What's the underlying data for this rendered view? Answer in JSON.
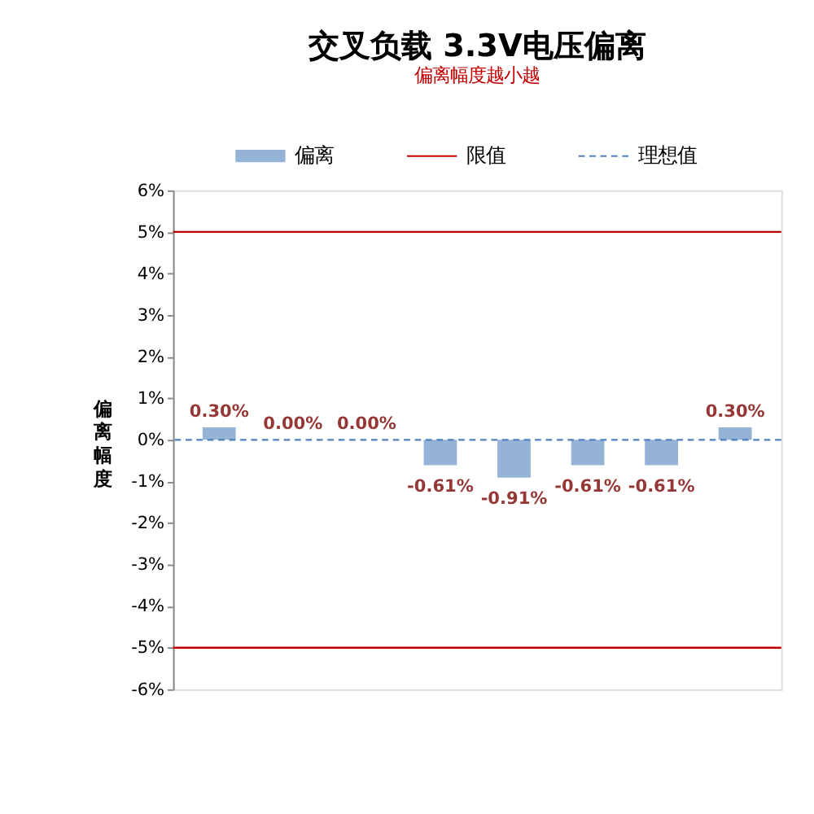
{
  "chart_data": {
    "type": "bar",
    "title": "交叉负载 3.3V电压偏离",
    "subtitle": "偏离幅度越小越",
    "ylabel": "偏离幅度",
    "categories": [
      null,
      null,
      null,
      null,
      null,
      null,
      null,
      null
    ],
    "series": [
      {
        "name": "偏离",
        "color": "#95b3d7",
        "values": [
          0.3,
          0.0,
          0.0,
          -0.61,
          -0.91,
          -0.61,
          -0.61,
          0.3
        ],
        "value_labels": [
          "0.30%",
          "0.00%",
          "0.00%",
          "-0.61%",
          "-0.91%",
          "-0.61%",
          "-0.61%",
          "0.30%"
        ]
      }
    ],
    "ref_lines": [
      {
        "axis": "y",
        "value": 5,
        "label": "限值",
        "color": "#c00000",
        "line_style": "solid"
      },
      {
        "axis": "y",
        "value": -5,
        "color": "#c00000",
        "line_style": "solid"
      },
      {
        "axis": "y",
        "value": 0,
        "label": "理想值",
        "color": "#4f81bd",
        "line_style": "dashed"
      }
    ],
    "ylim": [
      -6,
      6
    ],
    "yticks": [
      {
        "value": -6,
        "label": "-6%"
      },
      {
        "value": -5,
        "label": "-5%"
      },
      {
        "value": -4,
        "label": "-4%"
      },
      {
        "value": -3,
        "label": "-3%"
      },
      {
        "value": -2,
        "label": "-2%"
      },
      {
        "value": -1,
        "label": "-1%"
      },
      {
        "value": 0,
        "label": "0%"
      },
      {
        "value": 1,
        "label": "1%"
      },
      {
        "value": 2,
        "label": "2%"
      },
      {
        "value": 3,
        "label": "3%"
      },
      {
        "value": 4,
        "label": "4%"
      },
      {
        "value": 5,
        "label": "5%"
      },
      {
        "value": 6,
        "label": "6%"
      }
    ],
    "legend": "top",
    "grid": false
  }
}
